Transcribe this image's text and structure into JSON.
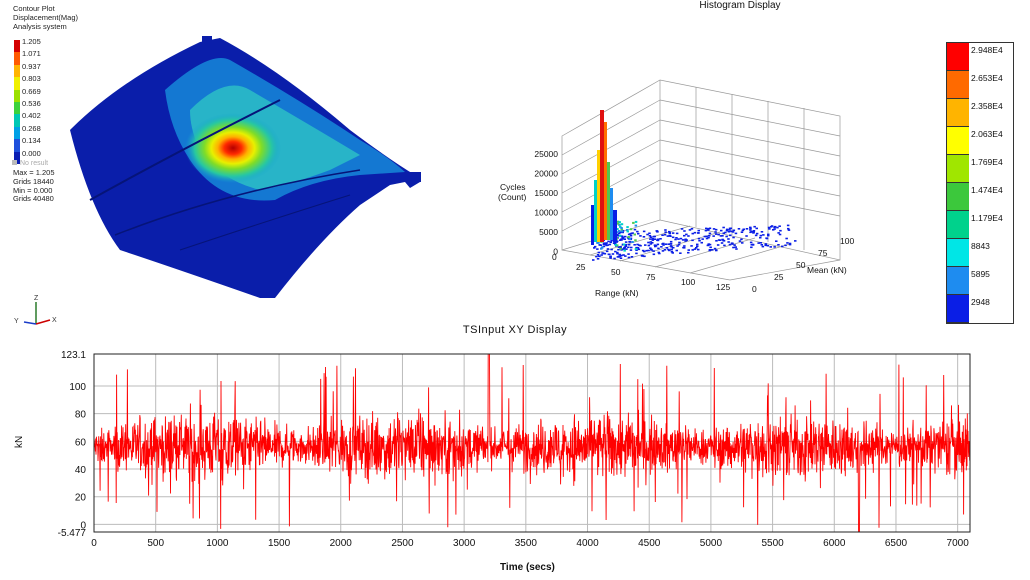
{
  "contour": {
    "title_lines": [
      "Contour Plot",
      "Displacement(Mag)",
      "Analysis system"
    ],
    "legend": [
      {
        "label": "1.205",
        "color": "#d40000"
      },
      {
        "label": "1.071",
        "color": "#ff5a00"
      },
      {
        "label": "0.937",
        "color": "#ffb400"
      },
      {
        "label": "0.803",
        "color": "#f0f000"
      },
      {
        "label": "0.669",
        "color": "#9be000"
      },
      {
        "label": "0.536",
        "color": "#3cd23c"
      },
      {
        "label": "0.402",
        "color": "#00c8b4"
      },
      {
        "label": "0.268",
        "color": "#00a0e6"
      },
      {
        "label": "0.134",
        "color": "#1e50dc"
      },
      {
        "label": "0.000",
        "color": "#0a1eb4"
      }
    ],
    "no_result": "No result",
    "stats": [
      "Max = 1.205",
      "Grids 18440",
      "Min = 0.000",
      "Grids 40480"
    ],
    "triad": {
      "x": "X",
      "y": "Y",
      "z": "Z"
    }
  },
  "histogram": {
    "title": "Histogram Display",
    "z_label_line1": "Cycles",
    "z_label_line2": "(Count)",
    "z_ticks": [
      "25000",
      "20000",
      "15000",
      "10000",
      "5000",
      "0"
    ],
    "x_label": "Range (kN)",
    "x_ticks": [
      "25",
      "50",
      "75",
      "100",
      "125"
    ],
    "x_zero": "0",
    "y_label": "Mean (kN)",
    "y_ticks": [
      "0",
      "25",
      "50",
      "75",
      "100"
    ],
    "colorbar": [
      {
        "label": "2.948E4",
        "color": "#ff0000"
      },
      {
        "label": "2.653E4",
        "color": "#ff6a00"
      },
      {
        "label": "2.358E4",
        "color": "#ffb400"
      },
      {
        "label": "2.063E4",
        "color": "#ffff00"
      },
      {
        "label": "1.769E4",
        "color": "#a0e600"
      },
      {
        "label": "1.474E4",
        "color": "#3cc83c"
      },
      {
        "label": "1.179E4",
        "color": "#00d28c"
      },
      {
        "label": "8843",
        "color": "#00e6e6"
      },
      {
        "label": "5895",
        "color": "#1e8cf0"
      },
      {
        "label": "2948",
        "color": "#0a1ee6"
      }
    ]
  },
  "chart_data": {
    "type": "line",
    "title": "TSInput XY Display",
    "xlabel": "Time (secs)",
    "ylabel": "kN",
    "xlim": [
      0,
      7100
    ],
    "ylim": [
      -5.477,
      123.1
    ],
    "x_ticks": [
      0,
      500,
      1000,
      1500,
      2000,
      2500,
      3000,
      3500,
      4000,
      4500,
      5000,
      5500,
      6000,
      6500,
      7000
    ],
    "y_ticks": [
      0,
      20,
      40,
      60,
      80,
      100
    ],
    "y_min_label": "-5.477",
    "y_max_label": "123.1",
    "grid": true,
    "series": [
      {
        "color": "#ff0000",
        "x": [
          0,
          250,
          500,
          750,
          1000,
          1250,
          1500,
          1750,
          2000,
          2250,
          2500,
          2750,
          3000,
          3200,
          3500,
          3750,
          4000,
          4250,
          4500,
          4750,
          5000,
          5250,
          5500,
          5750,
          6000,
          6200,
          6500,
          6750,
          7000,
          7100
        ],
        "y": [
          55,
          57,
          60,
          55,
          58,
          57,
          56,
          55,
          59,
          57,
          56,
          55,
          60,
          123.1,
          55,
          56,
          58,
          57,
          56,
          57,
          55,
          57,
          56,
          55,
          58,
          -5.477,
          57,
          56,
          55,
          56
        ]
      }
    ]
  }
}
